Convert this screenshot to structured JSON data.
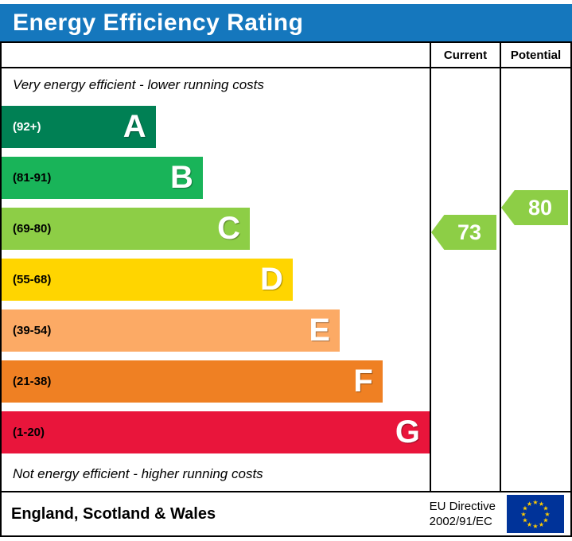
{
  "header": {
    "title": "Energy Efficiency Rating",
    "bg_color": "#1577bd",
    "text_color": "#ffffff"
  },
  "table": {
    "current_label": "Current",
    "potential_label": "Potential"
  },
  "notes": {
    "top": "Very energy efficient - lower running costs",
    "bottom": "Not energy efficient - higher running costs"
  },
  "chart_data": {
    "type": "bar",
    "title": "Energy Efficiency Rating",
    "bands": [
      {
        "letter": "A",
        "range_label": "(92+)",
        "range": [
          92,
          100
        ],
        "color": "#008054",
        "width_pct": 36,
        "label_color": "#ffffff"
      },
      {
        "letter": "B",
        "range_label": "(81-91)",
        "range": [
          81,
          91
        ],
        "color": "#19b459",
        "width_pct": 47,
        "label_color": "#000000"
      },
      {
        "letter": "C",
        "range_label": "(69-80)",
        "range": [
          69,
          80
        ],
        "color": "#8dce46",
        "width_pct": 58,
        "label_color": "#000000"
      },
      {
        "letter": "D",
        "range_label": "(55-68)",
        "range": [
          55,
          68
        ],
        "color": "#ffd500",
        "width_pct": 68,
        "label_color": "#000000"
      },
      {
        "letter": "E",
        "range_label": "(39-54)",
        "range": [
          39,
          54
        ],
        "color": "#fcaa65",
        "width_pct": 79,
        "label_color": "#000000"
      },
      {
        "letter": "F",
        "range_label": "(21-38)",
        "range": [
          21,
          38
        ],
        "color": "#ef8023",
        "width_pct": 89,
        "label_color": "#000000"
      },
      {
        "letter": "G",
        "range_label": "(1-20)",
        "range": [
          1,
          20
        ],
        "color": "#e9153b",
        "width_pct": 100,
        "label_color": "#000000"
      }
    ],
    "current": {
      "value": 73,
      "band": "C",
      "color": "#8dce46"
    },
    "potential": {
      "value": 80,
      "band": "C",
      "color": "#8dce46"
    }
  },
  "footer": {
    "region": "England, Scotland & Wales",
    "directive_line1": "EU Directive",
    "directive_line2": "2002/91/EC",
    "flag_colors": {
      "field": "#003399",
      "stars": "#ffcc00"
    }
  }
}
